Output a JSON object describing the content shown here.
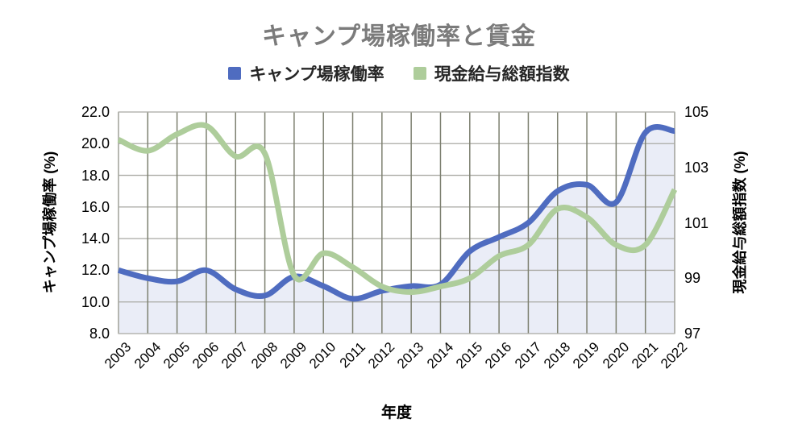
{
  "title": "キャンプ場稼働率と賃金",
  "legend": {
    "items": [
      {
        "label": "キャンプ場稼働率",
        "color": "#4f6cc0"
      },
      {
        "label": "現金給与総額指数",
        "color": "#aecd9b"
      }
    ]
  },
  "chart_data": {
    "type": "line",
    "title": "キャンプ場稼働率と賃金",
    "xlabel": "年度",
    "x": [
      "2003",
      "2004",
      "2005",
      "2006",
      "2007",
      "2008",
      "2009",
      "2010",
      "2011",
      "2012",
      "2013",
      "2014",
      "2015",
      "2016",
      "2017",
      "2018",
      "2019",
      "2020",
      "2021",
      "2022"
    ],
    "series": [
      {
        "name": "キャンプ場稼働率",
        "axis": "left",
        "color": "#4f6cc0",
        "area_fill": "rgba(79,108,192,0.12)",
        "line_width": 7,
        "values": [
          12.0,
          11.5,
          11.3,
          12.0,
          10.8,
          10.4,
          11.6,
          11.0,
          10.2,
          10.7,
          11.0,
          11.1,
          13.2,
          14.1,
          15.0,
          17.0,
          17.4,
          16.3,
          20.7,
          20.8
        ]
      },
      {
        "name": "現金給与総額指数",
        "axis": "right",
        "color": "#aecd9b",
        "area_fill": null,
        "line_width": 7,
        "values": [
          104.0,
          103.6,
          104.2,
          104.5,
          103.4,
          103.5,
          99.1,
          99.9,
          99.4,
          98.7,
          98.5,
          98.7,
          99.0,
          99.8,
          100.2,
          101.5,
          101.2,
          100.2,
          100.2,
          102.2
        ]
      }
    ],
    "left_axis": {
      "label": "キャンプ場稼働率 (%)",
      "min": 8,
      "max": 22,
      "ticks": [
        "22.0",
        "20.0",
        "18.0",
        "16.0",
        "14.0",
        "12.0",
        "10.0",
        "8.0"
      ]
    },
    "right_axis": {
      "label": "現金給与総額指数 (%)",
      "min": 97,
      "max": 105,
      "ticks": [
        "105",
        "103",
        "101",
        "99",
        "97"
      ]
    },
    "grid": true,
    "smooth": true,
    "legend_position": "top"
  },
  "colors": {
    "title_text": "#7b7b7b",
    "grid_vertical": "#7d8070",
    "grid_horizontal": "#a9a9a3",
    "plot_border": "#b3b3ae"
  }
}
